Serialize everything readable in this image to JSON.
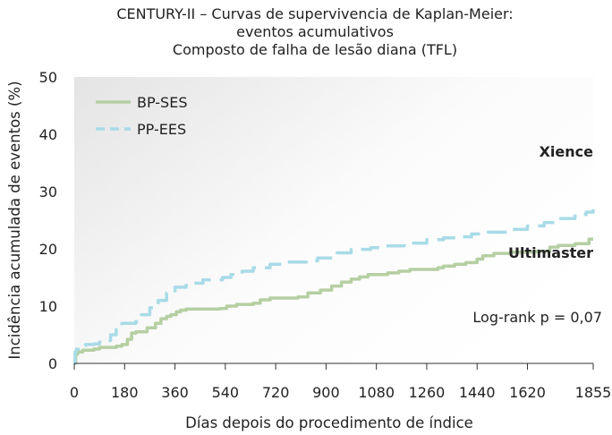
{
  "chart_data": {
    "type": "line",
    "title_lines": [
      "CENTURY-II – Curvas de supervivencia de Kaplan-Meier:",
      "eventos acumulativos",
      "Composto de falha de lesão diana (TFL)"
    ],
    "xlabel": "Días depois do procedimento de índice",
    "ylabel": "Incidência acumulada de eventos (%)",
    "xlim": [
      0,
      1855
    ],
    "ylim": [
      0,
      50
    ],
    "x_ticks": [
      "0",
      "180",
      "360",
      "540",
      "720",
      "900",
      "1080",
      "1260",
      "1440",
      "1620",
      "1855"
    ],
    "y_ticks": [
      "0",
      "10",
      "20",
      "30",
      "40",
      "50"
    ],
    "legend_position": "top-left",
    "series": [
      {
        "name": "BP-SES",
        "color": "#b5cfa2",
        "style": "solid",
        "points": [
          [
            0,
            0
          ],
          [
            5,
            1.6
          ],
          [
            12,
            2.0
          ],
          [
            30,
            2.3
          ],
          [
            70,
            2.5
          ],
          [
            90,
            2.8
          ],
          [
            150,
            3.0
          ],
          [
            170,
            3.3
          ],
          [
            190,
            4.2
          ],
          [
            205,
            5.3
          ],
          [
            220,
            5.5
          ],
          [
            260,
            6.2
          ],
          [
            290,
            7.0
          ],
          [
            310,
            7.8
          ],
          [
            330,
            8.2
          ],
          [
            345,
            8.5
          ],
          [
            365,
            9.0
          ],
          [
            380,
            9.3
          ],
          [
            400,
            9.5
          ],
          [
            450,
            9.5
          ],
          [
            520,
            9.6
          ],
          [
            545,
            10.0
          ],
          [
            580,
            10.3
          ],
          [
            640,
            10.5
          ],
          [
            665,
            11.1
          ],
          [
            700,
            11.4
          ],
          [
            800,
            11.6
          ],
          [
            835,
            12.3
          ],
          [
            880,
            12.8
          ],
          [
            920,
            13.5
          ],
          [
            955,
            14.2
          ],
          [
            990,
            14.7
          ],
          [
            1020,
            15.1
          ],
          [
            1050,
            15.5
          ],
          [
            1120,
            15.8
          ],
          [
            1160,
            16.1
          ],
          [
            1200,
            16.4
          ],
          [
            1300,
            16.7
          ],
          [
            1320,
            17.0
          ],
          [
            1360,
            17.3
          ],
          [
            1400,
            17.6
          ],
          [
            1440,
            18.2
          ],
          [
            1460,
            18.8
          ],
          [
            1500,
            19.2
          ],
          [
            1560,
            19.4
          ],
          [
            1650,
            19.6
          ],
          [
            1700,
            20.3
          ],
          [
            1730,
            20.6
          ],
          [
            1790,
            20.9
          ],
          [
            1840,
            21.7
          ],
          [
            1855,
            21.7
          ]
        ]
      },
      {
        "name": "PP-EES",
        "color": "#a8dbe7",
        "style": "dashed",
        "points": [
          [
            0,
            0
          ],
          [
            3,
            2.0
          ],
          [
            8,
            2.5
          ],
          [
            15,
            2.8
          ],
          [
            25,
            3.1
          ],
          [
            40,
            3.3
          ],
          [
            70,
            3.4
          ],
          [
            90,
            3.7
          ],
          [
            110,
            4.0
          ],
          [
            130,
            5.0
          ],
          [
            150,
            6.3
          ],
          [
            170,
            7.0
          ],
          [
            220,
            7.3
          ],
          [
            240,
            8.5
          ],
          [
            270,
            9.7
          ],
          [
            300,
            11.0
          ],
          [
            330,
            12.3
          ],
          [
            360,
            13.3
          ],
          [
            400,
            14.0
          ],
          [
            460,
            14.6
          ],
          [
            530,
            15.0
          ],
          [
            560,
            15.5
          ],
          [
            600,
            16.1
          ],
          [
            640,
            16.7
          ],
          [
            700,
            17.3
          ],
          [
            760,
            17.7
          ],
          [
            830,
            17.9
          ],
          [
            870,
            18.4
          ],
          [
            940,
            19.3
          ],
          [
            990,
            19.9
          ],
          [
            1060,
            20.2
          ],
          [
            1100,
            20.5
          ],
          [
            1180,
            21.0
          ],
          [
            1260,
            21.6
          ],
          [
            1320,
            21.9
          ],
          [
            1370,
            22.1
          ],
          [
            1420,
            22.6
          ],
          [
            1480,
            22.9
          ],
          [
            1550,
            23.4
          ],
          [
            1620,
            24.0
          ],
          [
            1680,
            24.6
          ],
          [
            1730,
            25.3
          ],
          [
            1790,
            26.0
          ],
          [
            1830,
            26.4
          ],
          [
            1855,
            26.9
          ]
        ]
      }
    ],
    "annotations": {
      "xience": "Xience",
      "ultimaster": "Ultimaster",
      "logrank": "Log-rank p = 0,07"
    }
  }
}
